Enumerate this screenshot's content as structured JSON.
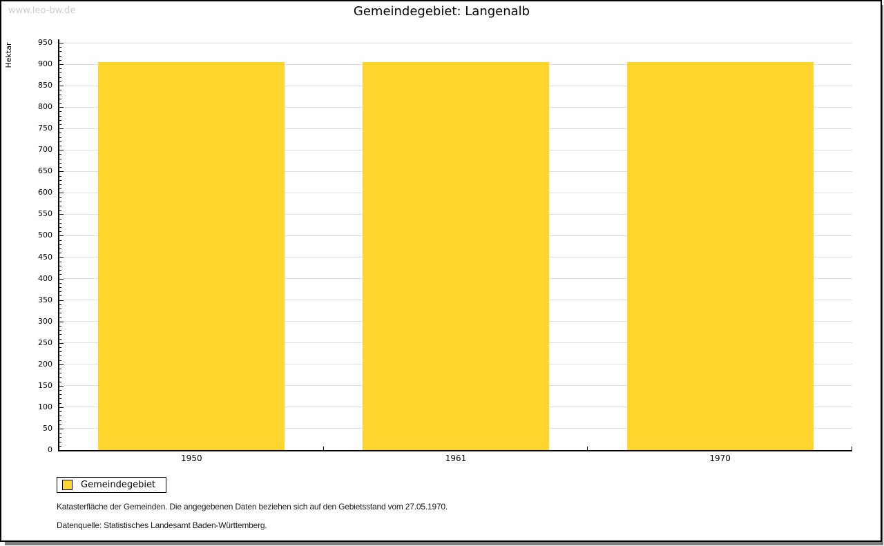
{
  "watermark": "www.leo-bw.de",
  "chart_data": {
    "type": "bar",
    "title": "Gemeindegebiet: Langenalb",
    "categories": [
      "1950",
      "1961",
      "1970"
    ],
    "values": [
      905,
      905,
      905
    ],
    "series_name": "Gemeindegebiet",
    "xlabel": "",
    "ylabel": "Hektar",
    "ylim": [
      0,
      950
    ],
    "y_major_step": 50,
    "y_minor_step": 10,
    "grid": "horizontal-major-gridlines",
    "legend_position": "bottom-left",
    "bar_width_fraction": 0.705
  },
  "legend": {
    "items": [
      {
        "label": "Gemeindegebiet",
        "color": "#FDD52D"
      }
    ]
  },
  "footnotes": {
    "line1": "Katasterfläche der Gemeinden. Die angegebenen Daten beziehen sich auf den Gebietsstand vom 27.05.1970.",
    "line2": "Datenquelle: Statistisches Landesamt Baden-Württemberg."
  },
  "colors": {
    "bar": "#FDD52D",
    "gridline": "#E0E0E0",
    "axis": "#000000",
    "watermark": "#CCCCCC",
    "shadow": "#7F7F7F"
  }
}
